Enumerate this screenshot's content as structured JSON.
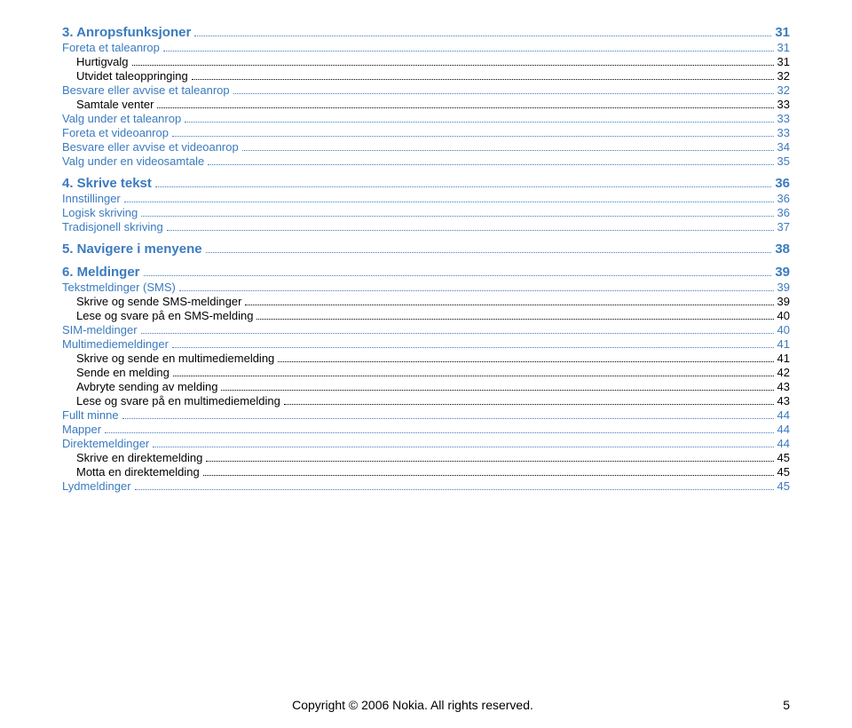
{
  "toc": [
    {
      "cls": "section section-first",
      "label": "3. Anropsfunksjoner",
      "page": "31"
    },
    {
      "cls": "entry",
      "label": "Foreta et taleanrop",
      "page": "31"
    },
    {
      "cls": "sub",
      "label": "Hurtigvalg",
      "page": "31"
    },
    {
      "cls": "sub",
      "label": "Utvidet taleoppringing",
      "page": "32"
    },
    {
      "cls": "entry",
      "label": "Besvare eller avvise et taleanrop",
      "page": "32"
    },
    {
      "cls": "sub",
      "label": "Samtale venter",
      "page": "33"
    },
    {
      "cls": "entry",
      "label": "Valg under et taleanrop",
      "page": "33"
    },
    {
      "cls": "entry",
      "label": "Foreta et videoanrop",
      "page": "33"
    },
    {
      "cls": "entry",
      "label": "Besvare eller avvise et videoanrop",
      "page": "34"
    },
    {
      "cls": "entry",
      "label": "Valg under en videosamtale",
      "page": "35"
    },
    {
      "cls": "section",
      "label": "4. Skrive tekst",
      "page": "36"
    },
    {
      "cls": "entry",
      "label": "Innstillinger",
      "page": "36"
    },
    {
      "cls": "entry",
      "label": "Logisk skriving",
      "page": "36"
    },
    {
      "cls": "entry",
      "label": "Tradisjonell skriving",
      "page": "37"
    },
    {
      "cls": "section",
      "label": "5. Navigere i menyene",
      "page": "38"
    },
    {
      "cls": "section",
      "label": "6. Meldinger",
      "page": "39"
    },
    {
      "cls": "entry",
      "label": "Tekstmeldinger (SMS)",
      "page": "39"
    },
    {
      "cls": "sub",
      "label": "Skrive og sende SMS-meldinger",
      "page": "39"
    },
    {
      "cls": "sub",
      "label": "Lese og svare på en SMS-melding",
      "page": "40"
    },
    {
      "cls": "entry",
      "label": "SIM-meldinger",
      "page": "40"
    },
    {
      "cls": "entry",
      "label": "Multimediemeldinger",
      "page": "41"
    },
    {
      "cls": "sub",
      "label": "Skrive og sende en multimediemelding",
      "page": "41"
    },
    {
      "cls": "sub",
      "label": "Sende en melding",
      "page": "42"
    },
    {
      "cls": "sub",
      "label": "Avbryte sending av melding",
      "page": "43"
    },
    {
      "cls": "sub",
      "label": "Lese og svare på en multimediemelding",
      "page": "43"
    },
    {
      "cls": "entry",
      "label": "Fullt minne",
      "page": "44"
    },
    {
      "cls": "entry",
      "label": "Mapper",
      "page": "44"
    },
    {
      "cls": "entry",
      "label": "Direktemeldinger",
      "page": "44"
    },
    {
      "cls": "sub",
      "label": "Skrive en direktemelding",
      "page": "45"
    },
    {
      "cls": "sub",
      "label": "Motta en direktemelding",
      "page": "45"
    },
    {
      "cls": "entry",
      "label": "Lydmeldinger",
      "page": "45"
    }
  ],
  "footer": {
    "copyright": "Copyright © 2006 Nokia. All rights reserved.",
    "pagenum": "5"
  }
}
